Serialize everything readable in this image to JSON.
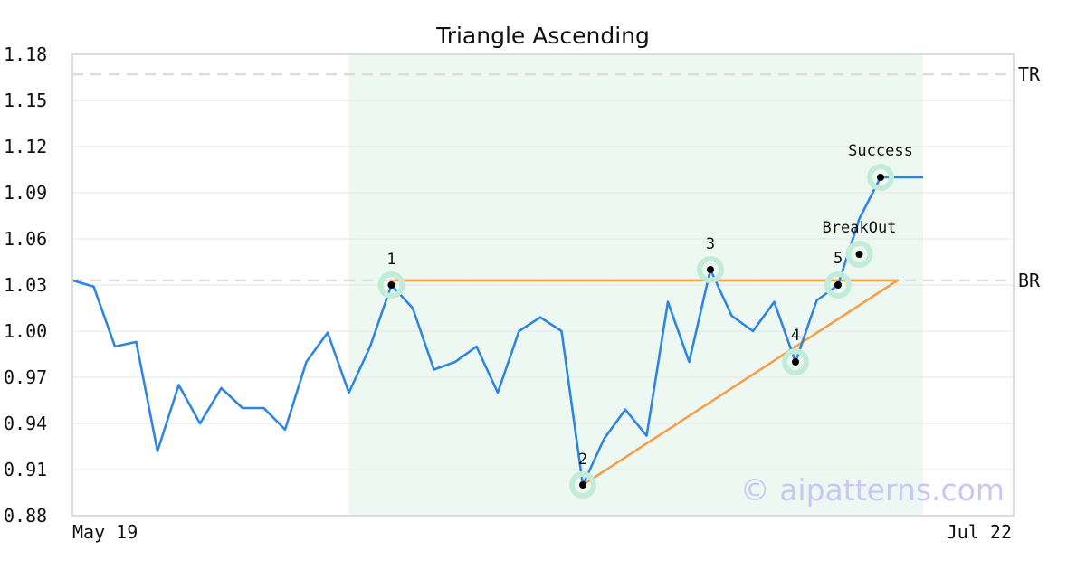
{
  "chart_data": {
    "type": "line",
    "title": "Triangle Ascending",
    "ylim": [
      0.88,
      1.18
    ],
    "y_ticks": [
      "1.18",
      "1.15",
      "1.12",
      "1.09",
      "1.06",
      "1.03",
      "1.00",
      "0.97",
      "0.94",
      "0.91",
      "0.88"
    ],
    "x_tick_labels": [
      "May 19",
      "Jul 22"
    ],
    "grid": true,
    "colors": {
      "price": "#2f86df",
      "trendline": "#f5a04a",
      "pattern_bg": "#eef8f3",
      "marker_halo": "#c3ecd8",
      "dashed": "#dddddd",
      "watermark": "#c8c8f5"
    },
    "series": [
      {
        "values": [
          1.033,
          1.029,
          0.99,
          0.993,
          0.922,
          0.965,
          0.94,
          0.963,
          0.95,
          0.95,
          0.936,
          0.98,
          0.999,
          0.96,
          0.99,
          1.03,
          1.015,
          0.975,
          0.98,
          0.99,
          0.96,
          1.0,
          1.009,
          1.0,
          0.9,
          0.93,
          0.949,
          0.932,
          1.019,
          0.98,
          1.04,
          1.01,
          1.0,
          1.019,
          0.98,
          1.02,
          1.03,
          1.073,
          1.1,
          1.1,
          1.1
        ]
      }
    ],
    "pattern_region": {
      "x_start": 13,
      "x_end": 40
    },
    "horizontal_lines": [
      {
        "label": "TR",
        "value": 1.167
      },
      {
        "label": "BR",
        "value": 1.033
      }
    ],
    "trendlines": [
      {
        "from": [
          15,
          1.033
        ],
        "to": [
          38.8,
          1.033
        ]
      },
      {
        "from": [
          24,
          0.9
        ],
        "to": [
          38.8,
          1.033
        ]
      }
    ],
    "points": [
      {
        "label": "1",
        "x": 15,
        "y": 1.03
      },
      {
        "label": "2",
        "x": 24,
        "y": 0.9
      },
      {
        "label": "3",
        "x": 30,
        "y": 1.04
      },
      {
        "label": "4",
        "x": 34,
        "y": 0.98
      },
      {
        "label": "5",
        "x": 36,
        "y": 1.03
      },
      {
        "label": "BreakOut",
        "x": 37,
        "y": 1.05
      },
      {
        "label": "Success",
        "x": 38,
        "y": 1.1
      }
    ],
    "watermark": "© aipatterns.com"
  }
}
